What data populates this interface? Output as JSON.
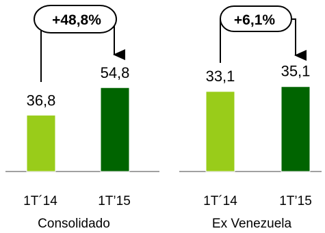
{
  "chart_data": [
    {
      "type": "bar",
      "name": "Consolidado",
      "categories": [
        "1T´14",
        "1T’15"
      ],
      "values": [
        36.8,
        54.8
      ],
      "value_labels": [
        "36,8",
        "54,8"
      ],
      "colors": [
        "#99cc1a",
        "#006400"
      ],
      "growth_label": "+48,8%",
      "ylim": [
        0,
        60
      ],
      "title": "",
      "xlabel": "Consolidado",
      "ylabel": "",
      "grid": false,
      "legend": "none"
    },
    {
      "type": "bar",
      "name": "Ex Venezuela",
      "categories": [
        "1T´14",
        "1T’15"
      ],
      "values": [
        33.1,
        35.1
      ],
      "value_labels": [
        "33,1",
        "35,1"
      ],
      "colors": [
        "#99cc1a",
        "#006400"
      ],
      "growth_label": "+6,1%",
      "ylim": [
        0,
        40
      ],
      "title": "",
      "xlabel": "Ex Venezuela",
      "ylabel": "",
      "grid": false,
      "legend": "none"
    }
  ],
  "colors": {
    "bar_light": "#99cc1a",
    "bar_dark": "#006400",
    "axis": "#808080",
    "bar_border": "#ffffff"
  }
}
